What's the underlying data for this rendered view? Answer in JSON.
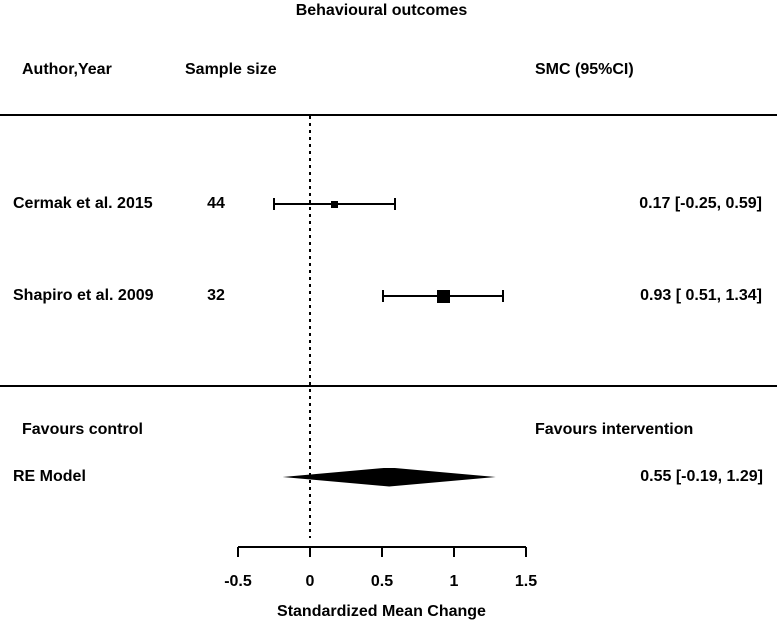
{
  "header": {
    "author": "Author,Year",
    "sample": "Sample size",
    "smc": "SMC (95%CI)"
  },
  "colors": {
    "foreground": "#000000",
    "background": "#ffffff"
  },
  "chart_data": {
    "type": "forest",
    "title": "Behavioural outcomes",
    "xlabel": "Standardized Mean Change",
    "x_range": [
      -0.5,
      1.5
    ],
    "x_ticks": [
      -0.5,
      0,
      0.5,
      1,
      1.5
    ],
    "reference_line": 0,
    "grid": false,
    "studies": [
      {
        "author": "Cermak et al. 2015",
        "sample_size": 44,
        "estimate": 0.17,
        "ci_lower": -0.25,
        "ci_upper": 0.59,
        "label": "0.17 [-0.25, 0.59]"
      },
      {
        "author": "Shapiro et al. 2009",
        "sample_size": 32,
        "estimate": 0.93,
        "ci_lower": 0.51,
        "ci_upper": 1.34,
        "label": "0.93 [ 0.51, 1.34]"
      }
    ],
    "summary": {
      "label": "RE Model",
      "estimate": 0.55,
      "ci_lower": -0.19,
      "ci_upper": 1.29,
      "text": "0.55 [-0.19, 1.29]"
    },
    "annotations": {
      "left": "Favours control",
      "right": "Favours intervention"
    }
  }
}
